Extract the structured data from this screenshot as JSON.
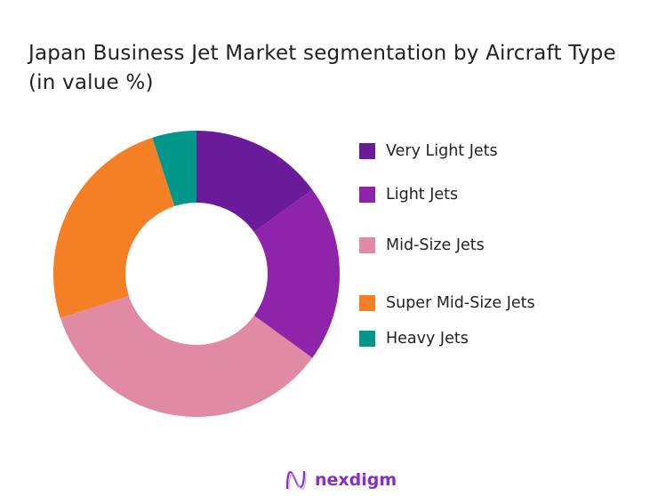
{
  "chart_data": {
    "type": "pie",
    "donut": true,
    "title": "Japan Business Jet Market segmentation by Aircraft Type (in value %)",
    "categories": [
      "Very Light Jets",
      "Light Jets",
      "Mid-Size Jets",
      "Super Mid-Size Jets",
      "Heavy Jets"
    ],
    "values": [
      15,
      20,
      35,
      25,
      5
    ],
    "colors": [
      "#6a1b9a",
      "#8e24aa",
      "#e08aa3",
      "#f57f25",
      "#00968a"
    ],
    "legend_position": "right"
  },
  "logo": {
    "text": "nexdigm",
    "color": "#8a2bd0"
  }
}
